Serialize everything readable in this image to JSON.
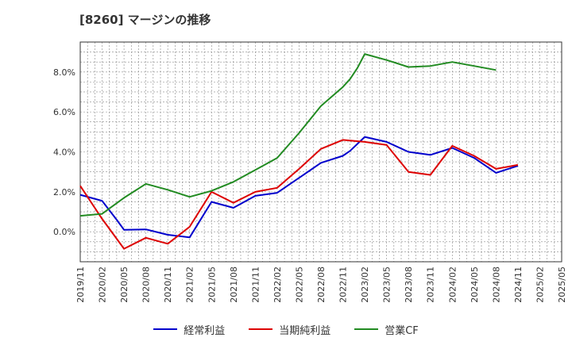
{
  "chart_data": {
    "type": "line",
    "title": "[8260]  マージンの推移",
    "xlabel": "",
    "ylabel": "",
    "ylim": [
      -1.5,
      9.5
    ],
    "grid": true,
    "legend_position": "bottom",
    "yticks": [
      {
        "value": 0,
        "label": "0.0%"
      },
      {
        "value": 2,
        "label": "2.0%"
      },
      {
        "value": 4,
        "label": "4.0%"
      },
      {
        "value": 6,
        "label": "6.0%"
      },
      {
        "value": 8,
        "label": "8.0%"
      }
    ],
    "xticks": [
      "2019/11",
      "2020/02",
      "2020/05",
      "2020/08",
      "2020/11",
      "2021/02",
      "2021/05",
      "2021/08",
      "2021/11",
      "2022/02",
      "2022/05",
      "2022/08",
      "2022/11",
      "2023/02",
      "2023/05",
      "2023/08",
      "2023/11",
      "2024/02",
      "2024/05",
      "2024/08",
      "2024/11",
      "2025/02",
      "2025/05"
    ],
    "series": [
      {
        "name": "経常利益",
        "color": "#0000cc",
        "points": [
          [
            "2019/11",
            1.85
          ],
          [
            "2020/02",
            1.55
          ],
          [
            "2020/04",
            0.6
          ],
          [
            "2020/05",
            0.1
          ],
          [
            "2020/08",
            0.12
          ],
          [
            "2020/11",
            -0.15
          ],
          [
            "2021/02",
            -0.28
          ],
          [
            "2021/05",
            1.5
          ],
          [
            "2021/08",
            1.2
          ],
          [
            "2021/11",
            1.8
          ],
          [
            "2022/02",
            1.95
          ],
          [
            "2022/05",
            2.7
          ],
          [
            "2022/08",
            3.45
          ],
          [
            "2022/11",
            3.8
          ],
          [
            "2022/12",
            4.05
          ],
          [
            "2023/02",
            4.75
          ],
          [
            "2023/05",
            4.5
          ],
          [
            "2023/08",
            4.0
          ],
          [
            "2023/11",
            3.85
          ],
          [
            "2024/02",
            4.2
          ],
          [
            "2024/05",
            3.7
          ],
          [
            "2024/08",
            2.95
          ],
          [
            "2024/11",
            3.3
          ]
        ]
      },
      {
        "name": "当期純利益",
        "color": "#dd0000",
        "points": [
          [
            "2019/11",
            2.3
          ],
          [
            "2020/02",
            0.65
          ],
          [
            "2020/05",
            -0.85
          ],
          [
            "2020/08",
            -0.3
          ],
          [
            "2020/11",
            -0.6
          ],
          [
            "2021/02",
            0.25
          ],
          [
            "2021/05",
            2.0
          ],
          [
            "2021/08",
            1.45
          ],
          [
            "2021/11",
            2.0
          ],
          [
            "2022/02",
            2.2
          ],
          [
            "2022/05",
            3.15
          ],
          [
            "2022/08",
            4.15
          ],
          [
            "2022/11",
            4.6
          ],
          [
            "2023/02",
            4.5
          ],
          [
            "2023/05",
            4.35
          ],
          [
            "2023/08",
            3.0
          ],
          [
            "2023/11",
            2.85
          ],
          [
            "2024/02",
            4.3
          ],
          [
            "2024/05",
            3.8
          ],
          [
            "2024/08",
            3.15
          ],
          [
            "2024/11",
            3.35
          ]
        ]
      },
      {
        "name": "営業CF",
        "color": "#228b22",
        "points": [
          [
            "2019/11",
            0.8
          ],
          [
            "2020/02",
            0.9
          ],
          [
            "2020/05",
            1.7
          ],
          [
            "2020/08",
            2.4
          ],
          [
            "2020/11",
            2.1
          ],
          [
            "2021/02",
            1.75
          ],
          [
            "2021/05",
            2.05
          ],
          [
            "2021/08",
            2.5
          ],
          [
            "2021/11",
            3.1
          ],
          [
            "2022/02",
            3.7
          ],
          [
            "2022/05",
            4.95
          ],
          [
            "2022/08",
            6.3
          ],
          [
            "2022/11",
            7.25
          ],
          [
            "2022/12",
            7.65
          ],
          [
            "2023/01",
            8.2
          ],
          [
            "2023/02",
            8.9
          ],
          [
            "2023/05",
            8.6
          ],
          [
            "2023/08",
            8.25
          ],
          [
            "2023/11",
            8.3
          ],
          [
            "2024/02",
            8.5
          ],
          [
            "2024/05",
            8.3
          ],
          [
            "2024/08",
            8.1
          ]
        ]
      }
    ]
  }
}
